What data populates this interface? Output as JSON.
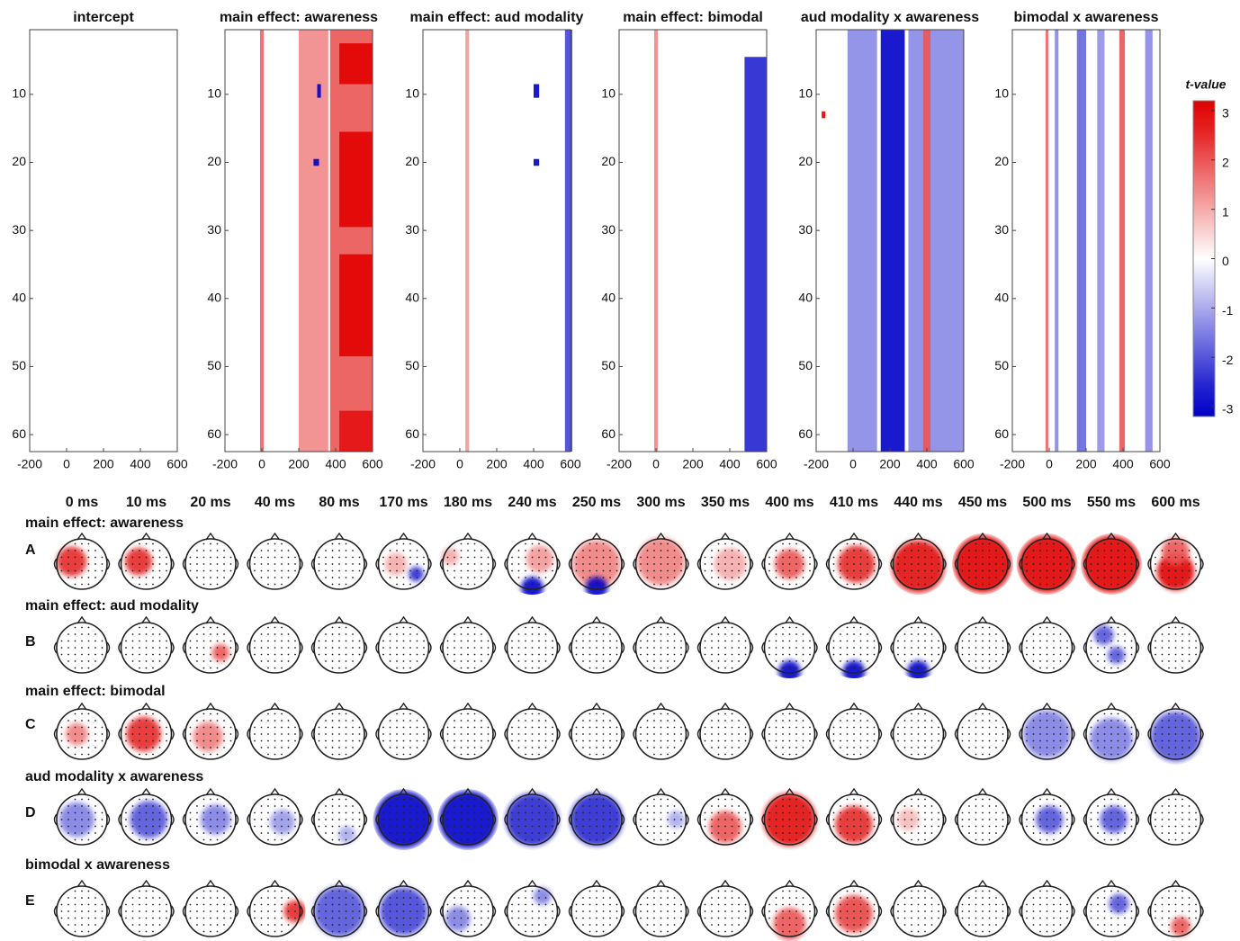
{
  "raster": {
    "xlim": [
      -200,
      600
    ],
    "ylim": [
      0.5,
      62.5
    ],
    "xticks": [
      -200,
      0,
      200,
      400,
      600
    ],
    "yticks": [
      10,
      20,
      30,
      40,
      50,
      60
    ],
    "panels": [
      {
        "title": "intercept",
        "clusters": []
      },
      {
        "title": "main effect: awareness",
        "clusters": [
          [
            1,
            62,
            -10,
            10,
            1.8
          ],
          [
            1,
            62,
            200,
            360,
            1.4
          ],
          [
            1,
            62,
            370,
            600,
            2.0
          ],
          [
            3,
            8,
            420,
            600,
            3
          ],
          [
            16,
            29,
            420,
            600,
            3
          ],
          [
            34,
            48,
            420,
            600,
            3
          ],
          [
            57,
            62,
            420,
            600,
            2.8
          ],
          [
            9,
            10,
            300,
            320,
            -3
          ],
          [
            20,
            20,
            280,
            310,
            -3
          ]
        ]
      },
      {
        "title": "main effect: aud modality",
        "clusters": [
          [
            1,
            62,
            30,
            50,
            1.2
          ],
          [
            1,
            62,
            570,
            610,
            -2.2
          ],
          [
            9,
            10,
            400,
            430,
            -3
          ],
          [
            20,
            20,
            400,
            430,
            -3
          ]
        ]
      },
      {
        "title": "main effect: bimodal",
        "clusters": [
          [
            1,
            62,
            -10,
            10,
            1.4
          ],
          [
            5,
            62,
            480,
            600,
            -2.6
          ]
        ]
      },
      {
        "title": "aud modality x awareness",
        "clusters": [
          [
            1,
            62,
            -30,
            130,
            -1.4
          ],
          [
            1,
            62,
            150,
            280,
            -3
          ],
          [
            1,
            62,
            300,
            600,
            -1.4
          ],
          [
            1,
            62,
            380,
            420,
            2.0
          ],
          [
            13,
            13,
            -170,
            -150,
            3
          ]
        ]
      },
      {
        "title": "bimodal x awareness",
        "clusters": [
          [
            1,
            62,
            -20,
            -5,
            1.8
          ],
          [
            1,
            62,
            30,
            50,
            -1.4
          ],
          [
            1,
            62,
            150,
            200,
            -1.8
          ],
          [
            1,
            62,
            260,
            300,
            -1.3
          ],
          [
            1,
            62,
            380,
            410,
            2.0
          ],
          [
            1,
            62,
            520,
            560,
            -1.4
          ]
        ]
      }
    ]
  },
  "colorbar": {
    "label": "t-value",
    "ylim": [
      -3.2,
      3.2
    ],
    "ticks": [
      3,
      2,
      1,
      0,
      -1,
      -2,
      -3
    ]
  },
  "topo": {
    "times": [
      "0 ms",
      "10 ms",
      "20 ms",
      "40 ms",
      "80 ms",
      "170 ms",
      "180 ms",
      "240 ms",
      "250 ms",
      "300 ms",
      "350 ms",
      "400 ms",
      "410 ms",
      "440 ms",
      "450 ms",
      "500 ms",
      "550 ms",
      "600 ms"
    ],
    "rows": [
      {
        "letter": "A",
        "title": "main effect: awareness",
        "maps": [
          [
            [
              -0.4,
              -0.1,
              0.45,
              2.5
            ]
          ],
          [
            [
              -0.3,
              -0.1,
              0.4,
              2.5
            ]
          ],
          [],
          [],
          [],
          [
            [
              -0.3,
              0,
              0.3,
              1
            ],
            [
              0.5,
              0.4,
              0.15,
              -2.5
            ]
          ],
          [
            [
              -0.7,
              -0.3,
              0.2,
              1
            ]
          ],
          [
            [
              0,
              0.95,
              0.3,
              -3
            ],
            [
              0.3,
              -0.2,
              0.4,
              1.2
            ]
          ],
          [
            [
              0,
              0,
              0.8,
              1.5
            ],
            [
              0,
              0.95,
              0.3,
              -3
            ]
          ],
          [
            [
              0,
              -0.1,
              0.8,
              1.5
            ]
          ],
          [
            [
              0.2,
              0,
              0.5,
              1
            ]
          ],
          [
            [
              0,
              0,
              0.45,
              2
            ]
          ],
          [
            [
              0.1,
              0,
              0.6,
              2.5
            ]
          ],
          [
            [
              0,
              0.1,
              0.9,
              2.8
            ]
          ],
          [
            [
              0,
              0,
              1,
              3
            ]
          ],
          [
            [
              0,
              0,
              1,
              3
            ]
          ],
          [
            [
              0,
              0,
              1,
              3
            ]
          ],
          [
            [
              0,
              0.3,
              0.6,
              3
            ],
            [
              0,
              -0.5,
              0.4,
              2
            ]
          ]
        ]
      },
      {
        "letter": "B",
        "title": "main effect: aud modality",
        "maps": [
          [],
          [],
          [
            [
              0.4,
              0.2,
              0.2,
              2
            ]
          ],
          [],
          [],
          [],
          [],
          [],
          [],
          [],
          [],
          [
            [
              0,
              0.95,
              0.3,
              -3
            ]
          ],
          [
            [
              0,
              0.95,
              0.3,
              -3
            ]
          ],
          [
            [
              0,
              0.95,
              0.3,
              -3
            ]
          ],
          [],
          [],
          [
            [
              -0.3,
              -0.5,
              0.25,
              -2
            ],
            [
              0.2,
              0.3,
              0.2,
              -2
            ]
          ],
          []
        ]
      },
      {
        "letter": "C",
        "title": "main effect: bimodal",
        "maps": [
          [
            [
              -0.2,
              0,
              0.3,
              1.5
            ]
          ],
          [
            [
              -0.1,
              0,
              0.55,
              2.5
            ]
          ],
          [
            [
              -0.1,
              0.1,
              0.45,
              1.5
            ]
          ],
          [],
          [],
          [],
          [],
          [],
          [],
          [],
          [],
          [],
          [],
          [],
          [],
          [
            [
              0,
              0,
              0.8,
              -1.5
            ]
          ],
          [
            [
              0,
              0.2,
              0.7,
              -1.5
            ]
          ],
          [
            [
              0,
              0.1,
              0.85,
              -2
            ]
          ]
        ]
      },
      {
        "letter": "D",
        "title": "aud modality x awareness",
        "maps": [
          [
            [
              -0.2,
              0,
              0.55,
              -1.5
            ]
          ],
          [
            [
              0.1,
              0,
              0.6,
              -2
            ]
          ],
          [
            [
              0.2,
              0,
              0.45,
              -1.5
            ]
          ],
          [
            [
              0.3,
              0.1,
              0.35,
              -1.2
            ]
          ],
          [
            [
              0.3,
              0.6,
              0.2,
              -1
            ]
          ],
          [
            [
              0,
              0,
              1,
              -3
            ]
          ],
          [
            [
              0,
              0,
              1,
              -3
            ]
          ],
          [
            [
              0,
              0,
              0.9,
              -2.5
            ]
          ],
          [
            [
              0,
              0,
              0.9,
              -2.5
            ]
          ],
          [
            [
              0.6,
              0,
              0.2,
              -1
            ]
          ],
          [
            [
              0,
              0.3,
              0.5,
              2
            ]
          ],
          [
            [
              0,
              0,
              0.9,
              2.8
            ]
          ],
          [
            [
              0,
              0.2,
              0.6,
              2.5
            ]
          ],
          [
            [
              -0.4,
              0,
              0.3,
              0.8
            ]
          ],
          [],
          [
            [
              0.1,
              0,
              0.4,
              -2
            ]
          ],
          [
            [
              0.1,
              0,
              0.4,
              -2
            ]
          ],
          []
        ]
      },
      {
        "letter": "E",
        "title": "bimodal x awareness",
        "maps": [
          [],
          [],
          [],
          [
            [
              0.8,
              0,
              0.3,
              2.5
            ]
          ],
          [
            [
              0,
              0,
              0.85,
              -2
            ]
          ],
          [
            [
              0,
              0,
              0.8,
              -2.2
            ]
          ],
          [
            [
              -0.4,
              0.3,
              0.35,
              -1.5
            ]
          ],
          [
            [
              0.4,
              -0.6,
              0.2,
              -1.5
            ]
          ],
          [],
          [],
          [],
          [
            [
              0,
              0.5,
              0.5,
              2
            ]
          ],
          [
            [
              0,
              0.1,
              0.6,
              2.2
            ]
          ],
          [],
          [],
          [],
          [
            [
              0.3,
              -0.3,
              0.25,
              -2
            ]
          ],
          [
            [
              0.2,
              0.6,
              0.25,
              2
            ]
          ]
        ]
      }
    ]
  }
}
